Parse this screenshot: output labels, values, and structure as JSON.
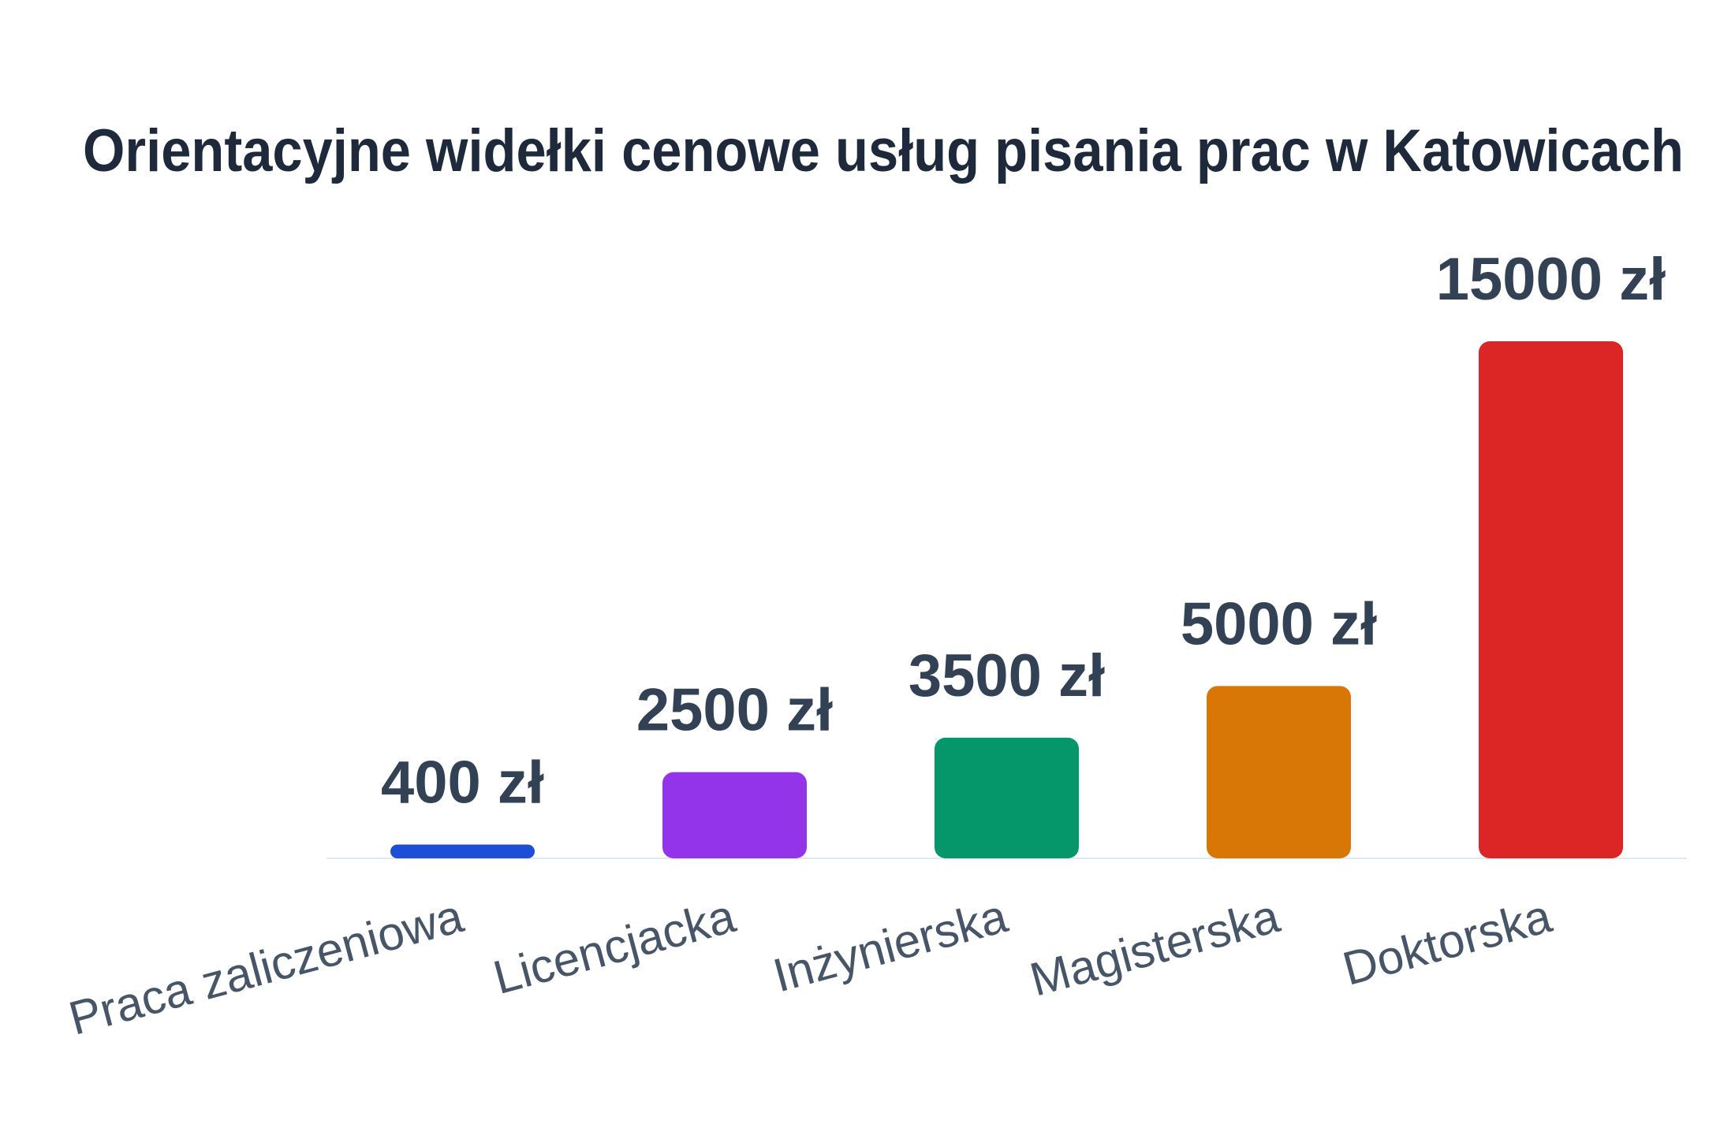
{
  "chart_data": {
    "type": "bar",
    "title": "Orientacyjne widełki cenowe usług pisania prac w Katowicach",
    "categories": [
      "Praca zaliczeniowa",
      "Licencjacka",
      "Inżynierska",
      "Magisterska",
      "Doktorska"
    ],
    "values": [
      400,
      2500,
      3500,
      5000,
      15000
    ],
    "value_labels": [
      "400 zł",
      "2500 zł",
      "3500 zł",
      "5000 zł",
      "15000 zł"
    ],
    "colors": [
      "#1d4ed8",
      "#9333ea",
      "#059669",
      "#d97706",
      "#dc2626"
    ]
  }
}
